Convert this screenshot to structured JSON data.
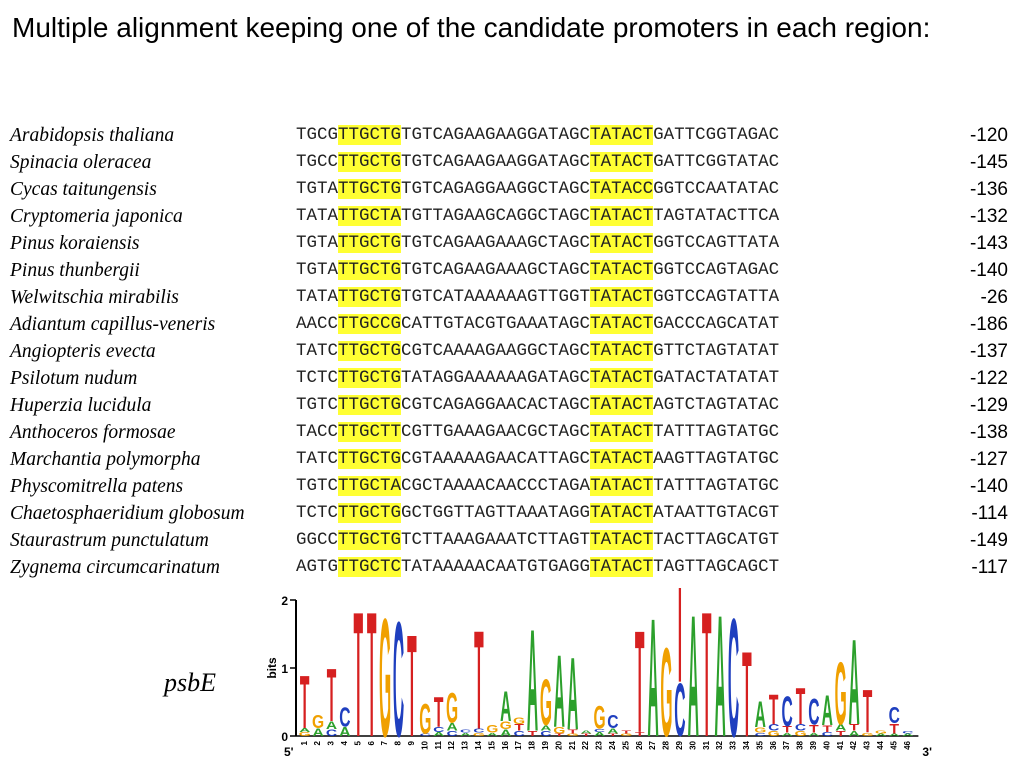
{
  "title": "Multiple alignment keeping one of the candidate promoters in each region:",
  "gene_label": "psbE",
  "highlight_color": "#ffff33",
  "rows": [
    {
      "species": "Arabidopsis thaliana",
      "pre": "TGCG",
      "box1": "TTGCTG",
      "mid": "TGTCAGAAGAAGGATAGC",
      "box2": "TATACT",
      "post": "GATTCGGTAGAC",
      "position": "-120"
    },
    {
      "species": "Spinacia oleracea",
      "pre": "TGCC",
      "box1": "TTGCTG",
      "mid": "TGTCAGAAGAAGGATAGC",
      "box2": "TATACT",
      "post": "GATTCGGTATAC",
      "position": "-145"
    },
    {
      "species": "Cycas taitungensis",
      "pre": "TGTA",
      "box1": "TTGCTG",
      "mid": "TGTCAGAGGAAGGCTAGC",
      "box2": "TATACC",
      "post": "GGTCCAATATAC",
      "position": "-136"
    },
    {
      "species": "Cryptomeria japonica",
      "pre": "TATA",
      "box1": "TTGCTA",
      "mid": "TGTTAGAAGCAGGCTAGC",
      "box2": "TATACT",
      "post": "TAGTATACTTCA",
      "position": "-132"
    },
    {
      "species": "Pinus koraiensis",
      "pre": "TGTA",
      "box1": "TTGCTG",
      "mid": "TGTCAGAAGAAAGCTAGC",
      "box2": "TATACT",
      "post": "GGTCCAGTTATA",
      "position": "-143"
    },
    {
      "species": "Pinus thunbergii",
      "pre": "TGTA",
      "box1": "TTGCTG",
      "mid": "TGTCAGAAGAAAGCTAGC",
      "box2": "TATACT",
      "post": "GGTCCAGTAGAC",
      "position": "-140"
    },
    {
      "species": "Welwitschia mirabilis",
      "pre": "TATA",
      "box1": "TTGCTG",
      "mid": "TGTCATAAAAAAGTTGGT",
      "box2": "TATACT",
      "post": "GGTCCAGTATTA",
      "position": "-26"
    },
    {
      "species": "Adiantum capillus-veneris",
      "pre": "AACC",
      "box1": "TTGCCG",
      "mid": "CATTGTACGTGAAATAGC",
      "box2": "TATACT",
      "post": "GACCCAGCATAT",
      "position": "-186"
    },
    {
      "species": "Angiopteris evecta",
      "pre": "TATC",
      "box1": "TTGCTG",
      "mid": "CGTCAAAAGAAGGCTAGC",
      "box2": "TATACT",
      "post": "GTTCTAGTATAT",
      "position": "-137"
    },
    {
      "species": "Psilotum nudum",
      "pre": "TCTC",
      "box1": "TTGCTG",
      "mid": "TATAGGAAAAAAGATAGC",
      "box2": "TATACT",
      "post": "GATACTATATAT",
      "position": "-122"
    },
    {
      "species": "Huperzia lucidula",
      "pre": "TGTC",
      "box1": "TTGCTG",
      "mid": "CGTCAGAGGAACACTAGC",
      "box2": "TATACT",
      "post": "AGTCTAGTATAC",
      "position": "-129"
    },
    {
      "species": "Anthoceros formosae",
      "pre": "TACC",
      "box1": "TTGCTT",
      "mid": "CGTTGAAAGAACGCTAGC",
      "box2": "TATACT",
      "post": "TATTTAGTATGC",
      "position": "-138"
    },
    {
      "species": "Marchantia polymorpha",
      "pre": "TATC",
      "box1": "TTGCTG",
      "mid": "CGTAAAAAGAACATTAGC",
      "box2": "TATACT",
      "post": "AAGTTAGTATGC",
      "position": "-127"
    },
    {
      "species": "Physcomitrella patens",
      "pre": "TGTC",
      "box1": "TTGCTA",
      "mid": "CGCTAAAACAACCCTAGA",
      "box2": "TATACT",
      "post": "TATTTAGTATGC",
      "position": "-140"
    },
    {
      "species": "Chaetosphaeridium globosum",
      "pre": "TCTC",
      "box1": "TTGCTG",
      "mid": "GCTGGTTAGTTAAATAGG",
      "box2": "TATACT",
      "post": "ATAATTGTACGT",
      "position": "-114"
    },
    {
      "species": "Staurastrum punctulatum",
      "pre": "GGCC",
      "box1": "TTGCTG",
      "mid": "TCTTAAAGAAATCTTAGT",
      "box2": "TATACT",
      "post": "TACTTAGCATGT",
      "position": "-149"
    },
    {
      "species": "Zygnema circumcarinatum",
      "pre": "AGTG",
      "box1": "TTGCTC",
      "mid": "TATAAAAACAATGTGAGG",
      "box2": "TATACT",
      "post": "TAGTTAGCAGCT",
      "position": "-117"
    }
  ],
  "logo": {
    "ylabel": "bits",
    "yticks": [
      "0",
      "1",
      "2"
    ],
    "ymax": 2,
    "end5": "5'",
    "end3": "3'",
    "base_colors": {
      "A": "#2ca02c",
      "C": "#1f3fbf",
      "G": "#f0a000",
      "T": "#d62020"
    },
    "positions": [
      {
        "n": "1",
        "stack": [
          [
            "G",
            0.06
          ],
          [
            "A",
            0.06
          ],
          [
            "T",
            0.8
          ]
        ]
      },
      {
        "n": "2",
        "stack": [
          [
            "A",
            0.12
          ],
          [
            "G",
            0.2
          ]
        ]
      },
      {
        "n": "3",
        "stack": [
          [
            "C",
            0.1
          ],
          [
            "A",
            0.12
          ],
          [
            "T",
            0.8
          ]
        ]
      },
      {
        "n": "4",
        "stack": [
          [
            "A",
            0.14
          ],
          [
            "C",
            0.3
          ]
        ]
      },
      {
        "n": "5",
        "stack": [
          [
            "T",
            1.9
          ]
        ]
      },
      {
        "n": "6",
        "stack": [
          [
            "T",
            1.9
          ]
        ]
      },
      {
        "n": "7",
        "stack": [
          [
            "G",
            1.8
          ]
        ]
      },
      {
        "n": "8",
        "stack": [
          [
            "C",
            1.75
          ]
        ]
      },
      {
        "n": "9",
        "stack": [
          [
            "T",
            1.55
          ]
        ]
      },
      {
        "n": "10",
        "stack": [
          [
            "C",
            0.04
          ],
          [
            "G",
            0.45
          ]
        ]
      },
      {
        "n": "11",
        "stack": [
          [
            "A",
            0.06
          ],
          [
            "C",
            0.08
          ],
          [
            "T",
            0.45
          ]
        ]
      },
      {
        "n": "12",
        "stack": [
          [
            "C",
            0.08
          ],
          [
            "A",
            0.12
          ],
          [
            "G",
            0.45
          ]
        ]
      },
      {
        "n": "13",
        "stack": [
          [
            "A",
            0.05
          ],
          [
            "C",
            0.05
          ]
        ]
      },
      {
        "n": "14",
        "stack": [
          [
            "G",
            0.05
          ],
          [
            "C",
            0.06
          ],
          [
            "T",
            1.5
          ]
        ]
      },
      {
        "n": "15",
        "stack": [
          [
            "A",
            0.05
          ],
          [
            "G",
            0.12
          ]
        ]
      },
      {
        "n": "16",
        "stack": [
          [
            "A",
            0.1
          ],
          [
            "G",
            0.12
          ],
          [
            "A",
            0.45
          ]
        ]
      },
      {
        "n": "17",
        "stack": [
          [
            "C",
            0.08
          ],
          [
            "T",
            0.1
          ],
          [
            "G",
            0.1
          ]
        ]
      },
      {
        "n": "18",
        "stack": [
          [
            "T",
            0.08
          ],
          [
            "A",
            1.55
          ]
        ]
      },
      {
        "n": "19",
        "stack": [
          [
            "C",
            0.08
          ],
          [
            "A",
            0.08
          ],
          [
            "G",
            0.7
          ]
        ]
      },
      {
        "n": "20",
        "stack": [
          [
            "T",
            0.04
          ],
          [
            "G",
            0.1
          ],
          [
            "A",
            1.1
          ]
        ]
      },
      {
        "n": "21",
        "stack": [
          [
            "G",
            0.04
          ],
          [
            "T",
            0.06
          ],
          [
            "A",
            1.1
          ]
        ]
      },
      {
        "n": "22",
        "stack": [
          [
            "T",
            0.04
          ],
          [
            "A",
            0.05
          ]
        ]
      },
      {
        "n": "23",
        "stack": [
          [
            "A",
            0.06
          ],
          [
            "C",
            0.05
          ],
          [
            "G",
            0.35
          ]
        ]
      },
      {
        "n": "24",
        "stack": [
          [
            "T",
            0.04
          ],
          [
            "A",
            0.08
          ],
          [
            "C",
            0.2
          ]
        ]
      },
      {
        "n": "25",
        "stack": [
          [
            "G",
            0.04
          ],
          [
            "T",
            0.05
          ]
        ]
      },
      {
        "n": "26",
        "stack": [
          [
            "T",
            0.06
          ],
          [
            "T",
            1.55
          ]
        ]
      },
      {
        "n": "27",
        "stack": [
          [
            "A",
            1.8
          ]
        ]
      },
      {
        "n": "28",
        "stack": [
          [
            "G",
            1.35
          ]
        ]
      },
      {
        "n": "29",
        "stack": [
          [
            "C",
            0.8
          ],
          [
            "T",
            1.9
          ]
        ]
      },
      {
        "n": "30",
        "stack": [
          [
            "A",
            1.85
          ]
        ]
      },
      {
        "n": "31",
        "stack": [
          [
            "T",
            1.9
          ]
        ]
      },
      {
        "n": "32",
        "stack": [
          [
            "A",
            1.85
          ]
        ]
      },
      {
        "n": "33",
        "stack": [
          [
            "C",
            1.8
          ]
        ]
      },
      {
        "n": "34",
        "stack": [
          [
            "T",
            1.3
          ]
        ]
      },
      {
        "n": "35",
        "stack": [
          [
            "C",
            0.05
          ],
          [
            "G",
            0.08
          ],
          [
            "A",
            0.4
          ]
        ]
      },
      {
        "n": "36",
        "stack": [
          [
            "G",
            0.08
          ],
          [
            "C",
            0.1
          ],
          [
            "T",
            0.45
          ]
        ]
      },
      {
        "n": "37",
        "stack": [
          [
            "A",
            0.05
          ],
          [
            "T",
            0.1
          ],
          [
            "C",
            0.45
          ]
        ]
      },
      {
        "n": "38",
        "stack": [
          [
            "G",
            0.08
          ],
          [
            "C",
            0.1
          ],
          [
            "T",
            0.55
          ]
        ]
      },
      {
        "n": "39",
        "stack": [
          [
            "A",
            0.05
          ],
          [
            "T",
            0.12
          ],
          [
            "C",
            0.4
          ]
        ]
      },
      {
        "n": "40",
        "stack": [
          [
            "C",
            0.06
          ],
          [
            "T",
            0.1
          ],
          [
            "A",
            0.45
          ]
        ]
      },
      {
        "n": "41",
        "stack": [
          [
            "T",
            0.08
          ],
          [
            "A",
            0.1
          ],
          [
            "G",
            0.95
          ]
        ]
      },
      {
        "n": "42",
        "stack": [
          [
            "A",
            0.08
          ],
          [
            "T",
            0.1
          ],
          [
            "A",
            1.3
          ]
        ]
      },
      {
        "n": "43",
        "stack": [
          [
            "G",
            0.05
          ],
          [
            "T",
            0.65
          ]
        ]
      },
      {
        "n": "44",
        "stack": [
          [
            "A",
            0.04
          ],
          [
            "G",
            0.05
          ]
        ]
      },
      {
        "n": "45",
        "stack": [
          [
            "A",
            0.04
          ],
          [
            "T",
            0.15
          ],
          [
            "C",
            0.25
          ]
        ]
      },
      {
        "n": "46",
        "stack": [
          [
            "A",
            0.04
          ],
          [
            "C",
            0.04
          ]
        ]
      }
    ]
  }
}
